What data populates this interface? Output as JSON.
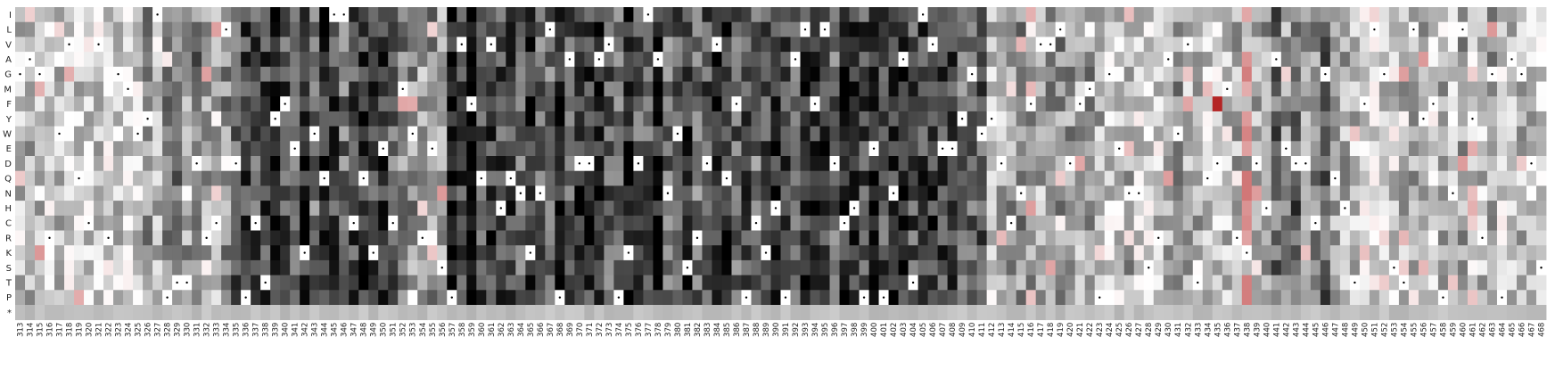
{
  "chart_data": {
    "type": "heatmap",
    "title": "",
    "xlabel": "",
    "ylabel": "",
    "rows": [
      "I",
      "L",
      "V",
      "A",
      "G",
      "M",
      "F",
      "Y",
      "W",
      "E",
      "D",
      "Q",
      "N",
      "H",
      "C",
      "R",
      "K",
      "S",
      "T",
      "P",
      "*"
    ],
    "x_start": 313,
    "x_end": 468,
    "value_range": [
      -1,
      1
    ],
    "color_scale": {
      "low": "#000000",
      "mid": "#ffffff",
      "high": "#b01818"
    },
    "cell_markers": "small dot marks the wild-type residue at each position",
    "legend": "none",
    "grid": false,
    "seed": 731
  }
}
